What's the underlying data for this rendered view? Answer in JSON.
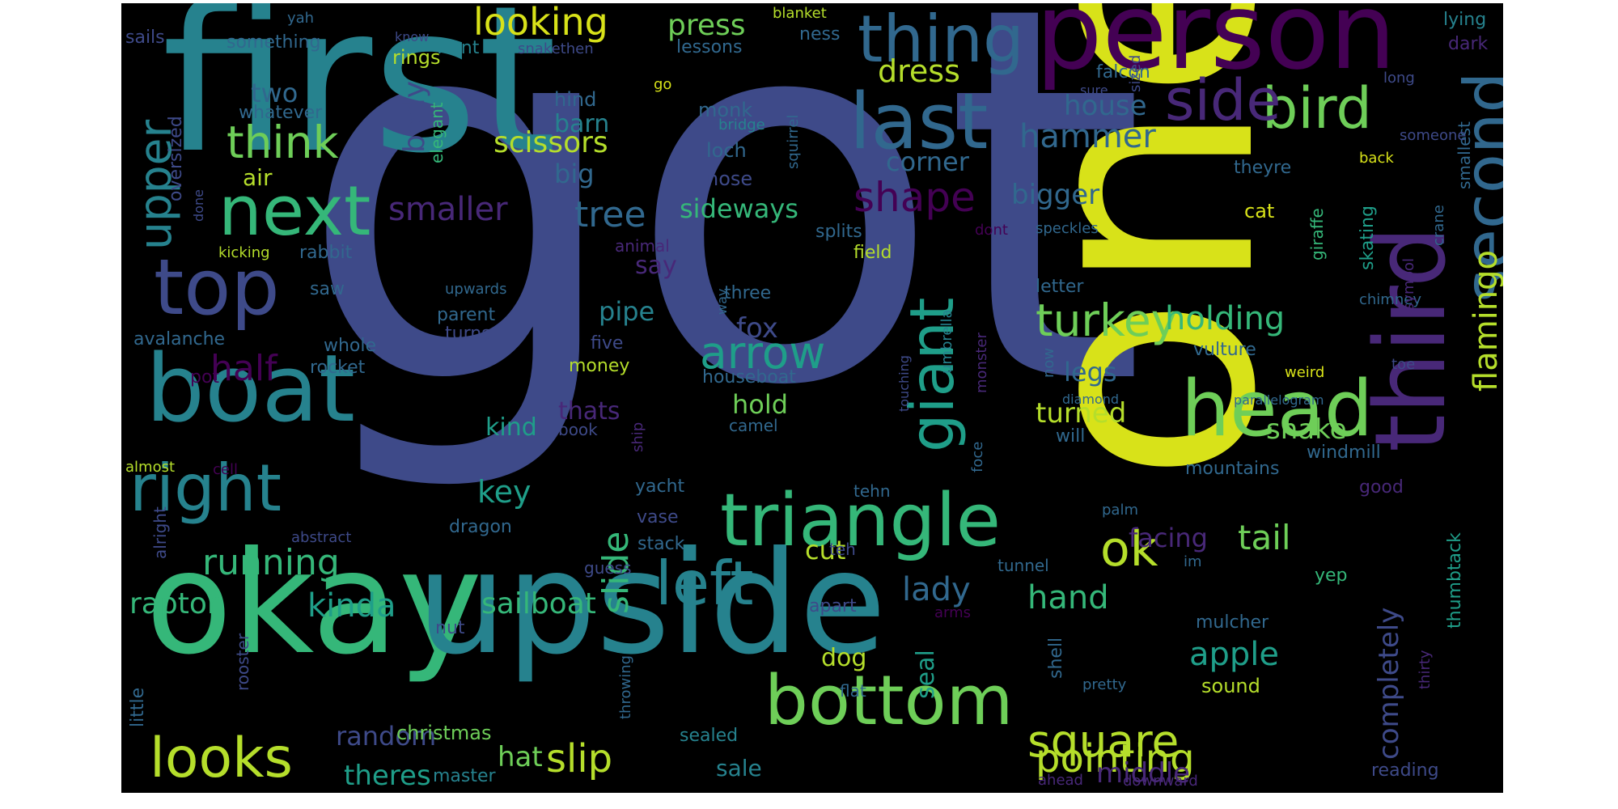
{
  "palette": {
    "background": "#000000",
    "page": "#ffffff",
    "viridis": [
      "#440154",
      "#482878",
      "#3e4a89",
      "#31688e",
      "#26828e",
      "#1f9e89",
      "#35b779",
      "#6ece58",
      "#b5de2b",
      "#d8e219"
    ]
  },
  "words": {
    "got": "got",
    "one": "one",
    "first": "first",
    "upside": "upside",
    "okay": "okay",
    "person": "person",
    "third": "third",
    "boat": "boat",
    "bottom": "bottom",
    "head": "head",
    "triangle": "triangle",
    "next": "next",
    "top": "top",
    "last": "last",
    "right": "right",
    "second": "second",
    "thing": "thing",
    "left": "left",
    "giant": "giant",
    "looks": "looks",
    "bird": "bird",
    "side": "side",
    "square": "square",
    "think": "think",
    "turkey": "turkey",
    "arrow": "arrow",
    "ok": "ok",
    "upper": "upper",
    "shape": "shape",
    "slip": "slip",
    "pointing": "pointing",
    "looking": "looking",
    "flamingo": "flamingo",
    "running": "running",
    "half": "half",
    "tree": "tree",
    "hammer": "hammer",
    "holding": "holding",
    "tail": "tail",
    "slide": "slide",
    "apple": "apple",
    "kinda": "kinda",
    "hand": "hand",
    "scissors": "scissors",
    "dress": "dress",
    "press": "press",
    "smaller": "smaller",
    "raptor": "raptor",
    "sailboat": "sailboat",
    "completely": "completely",
    "lady": "lady",
    "middle": "middle",
    "key": "key",
    "random": "random",
    "theres": "theres",
    "body": "body",
    "bigger": "bigger",
    "corner": "corner",
    "house": "house",
    "turned": "turned",
    "snake": "snake",
    "facing": "facing",
    "hat": "hat",
    "sideways": "sideways",
    "two": "two",
    "big": "big",
    "barn": "barn",
    "kind": "kind",
    "thats": "thats",
    "hold": "hold",
    "pipe": "pipe",
    "fox": "fox",
    "cut": "cut",
    "dog": "dog",
    "legs": "legs",
    "seal": "seal",
    "say": "say",
    "sale": "sale",
    "christmas": "christmas",
    "master": "master",
    "air": "air",
    "whatever": "whatever",
    "something": "something",
    "sails": "sails",
    "rings": "rings",
    "front": "front",
    "lessons": "lessons",
    "ness": "ness",
    "blanket": "blanket",
    "yah": "yah",
    "know": "know",
    "snakethen": "snakethen",
    "lying": "lying",
    "dark": "dark",
    "long": "long",
    "smallest": "smallest",
    "someone": "someone",
    "crane": "crane",
    "back": "back",
    "theyre": "theyre",
    "falcon": "falcon",
    "sized": "sized",
    "sure": "sure",
    "go": "go",
    "hind": "hind",
    "monk": "monk",
    "bridge": "bridge",
    "loch": "loch",
    "nose": "nose",
    "squirrel": "squirrel",
    "elegant": "elegant",
    "oversized": "oversized",
    "done": "done",
    "kicking": "kicking",
    "rabbit": "rabbit",
    "animal": "animal",
    "field": "field",
    "splits": "splits",
    "speckles": "speckles",
    "dont": "dont",
    "giraffe": "giraffe",
    "skating": "skating",
    "cat": "cat",
    "chimney": "chimney",
    "symbol": "symbol",
    "saw": "saw",
    "upwards": "upwards",
    "parent": "parent",
    "turns": "turns",
    "three": "three",
    "five": "five",
    "money": "money",
    "way": "way",
    "houseboat": "houseboat",
    "umbrella": "umbrella",
    "monster": "monster",
    "touching": "touching",
    "avalanche": "avalanche",
    "whole": "whole",
    "rocket": "rocket",
    "pot": "pot",
    "letter": "letter",
    "vulture": "vulture",
    "weird": "weird",
    "now": "now",
    "toe": "toe",
    "diamond": "diamond",
    "parallelogram": "parallelogram",
    "camel": "camel",
    "will": "will",
    "windmill": "windmill",
    "almost": "almost",
    "cell": "cell",
    "book": "book",
    "ship": "ship",
    "foce": "foce",
    "mountains": "mountains",
    "good": "good",
    "yacht": "yacht",
    "tehn": "tehn",
    "alright": "alright",
    "abstract": "abstract",
    "dragon": "dragon",
    "vase": "vase",
    "palm": "palm",
    "stack": "stack",
    "guess": "guess",
    "teh": "teh",
    "tunnel": "tunnel",
    "im": "im",
    "yep": "yep",
    "thumbtack": "thumbtack",
    "thirty": "thirty",
    "apart": "apart",
    "nut": "nut",
    "arms": "arms",
    "mulcher": "mulcher",
    "rooster": "rooster",
    "flat": "flat",
    "little": "little",
    "throwing": "throwing",
    "shell": "shell",
    "pretty": "pretty",
    "sound": "sound",
    "sealed": "sealed",
    "ahead": "ahead",
    "downward": "downward",
    "reading": "reading"
  }
}
